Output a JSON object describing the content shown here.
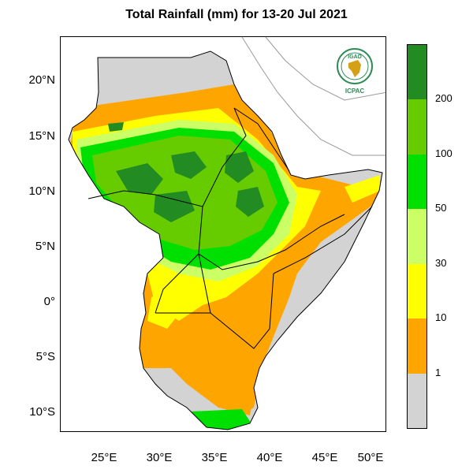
{
  "title": "Total Rainfall (mm) for 13-20 Jul 2021",
  "lat_labels": [
    "20°N",
    "15°N",
    "10°N",
    "5°N",
    "0°",
    "5°S",
    "10°S"
  ],
  "lon_labels": [
    "25°E",
    "30°E",
    "35°E",
    "40°E",
    "45°E",
    "50°E"
  ],
  "legend": {
    "bins": [
      {
        "label": "",
        "color": "#d3d3d3"
      },
      {
        "label": "1",
        "color": "#ffa500"
      },
      {
        "label": "10",
        "color": "#ffff00"
      },
      {
        "label": "30",
        "color": "#ccff66"
      },
      {
        "label": "50",
        "color": "#00e000"
      },
      {
        "label": "100",
        "color": "#66cc00"
      },
      {
        "label": "200",
        "color": "#228b22"
      }
    ]
  },
  "logo": {
    "top_text": "IGAD",
    "bottom_text": "ICPAC"
  },
  "colors": {
    "land_dry": "#d3d3d3",
    "border": "#000000",
    "outer_border": "#999999"
  }
}
